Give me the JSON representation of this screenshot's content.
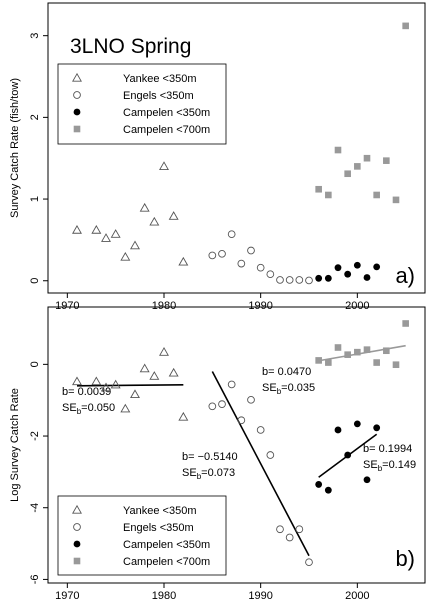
{
  "chart_data": [
    {
      "type": "scatter",
      "title": "3LNO Spring",
      "panel_label": "a)",
      "xlabel": "",
      "ylabel": "Survey Catch Rate (fish/tow)",
      "xlim": [
        1968,
        2007
      ],
      "ylim": [
        -0.15,
        3.4
      ],
      "x_ticks": [
        1970,
        1980,
        1990,
        2000
      ],
      "y_ticks": [
        0,
        1,
        2,
        3
      ],
      "legend_position": "top-left",
      "series": [
        {
          "name": "Yankee <350m",
          "marker": "triangle",
          "color": "#555555",
          "points": [
            [
              1971,
              0.62
            ],
            [
              1973,
              0.62
            ],
            [
              1974,
              0.52
            ],
            [
              1975,
              0.57
            ],
            [
              1976,
              0.29
            ],
            [
              1977,
              0.43
            ],
            [
              1978,
              0.89
            ],
            [
              1979,
              0.72
            ],
            [
              1980,
              1.4
            ],
            [
              1981,
              0.79
            ],
            [
              1982,
              0.23
            ]
          ]
        },
        {
          "name": "Engels <350m",
          "marker": "circle",
          "color": "#555555",
          "points": [
            [
              1985,
              0.31
            ],
            [
              1986,
              0.33
            ],
            [
              1987,
              0.57
            ],
            [
              1988,
              0.21
            ],
            [
              1989,
              0.37
            ],
            [
              1990,
              0.16
            ],
            [
              1991,
              0.08
            ],
            [
              1992,
              0.01
            ],
            [
              1993,
              0.01
            ],
            [
              1994,
              0.01
            ],
            [
              1995,
              0.004
            ]
          ]
        },
        {
          "name": "Campelen <350m",
          "marker": "filled-circle",
          "color": "#000000",
          "points": [
            [
              1996,
              0.03
            ],
            [
              1997,
              0.03
            ],
            [
              1998,
              0.16
            ],
            [
              1999,
              0.08
            ],
            [
              2000,
              0.19
            ],
            [
              2001,
              0.04
            ],
            [
              2002,
              0.17
            ]
          ]
        },
        {
          "name": "Campelen <700m",
          "marker": "filled-square",
          "color": "#999999",
          "points": [
            [
              1996,
              1.12
            ],
            [
              1997,
              1.05
            ],
            [
              1998,
              1.6
            ],
            [
              1999,
              1.31
            ],
            [
              2000,
              1.4
            ],
            [
              2001,
              1.5
            ],
            [
              2002,
              1.05
            ],
            [
              2003,
              1.47
            ],
            [
              2004,
              0.99
            ],
            [
              2005,
              3.12
            ]
          ]
        }
      ]
    },
    {
      "type": "scatter",
      "title": "",
      "panel_label": "b)",
      "xlabel": "",
      "ylabel": "Log Survey Catch Rate",
      "xlim": [
        1968,
        2007
      ],
      "ylim": [
        -6.1,
        1.6
      ],
      "x_ticks": [
        1970,
        1980,
        1990,
        2000
      ],
      "y_ticks": [
        -6,
        -4,
        -2,
        0
      ],
      "legend_position": "bottom-left",
      "series": [
        {
          "name": "Yankee <350m",
          "marker": "triangle",
          "color": "#555555",
          "points": [
            [
              1971,
              -0.48
            ],
            [
              1973,
              -0.48
            ],
            [
              1974,
              -0.65
            ],
            [
              1975,
              -0.57
            ],
            [
              1976,
              -1.24
            ],
            [
              1977,
              -0.84
            ],
            [
              1978,
              -0.12
            ],
            [
              1979,
              -0.33
            ],
            [
              1980,
              0.34
            ],
            [
              1981,
              -0.24
            ],
            [
              1982,
              -1.47
            ]
          ]
        },
        {
          "name": "Engels <350m",
          "marker": "circle",
          "color": "#555555",
          "points": [
            [
              1985,
              -1.17
            ],
            [
              1986,
              -1.11
            ],
            [
              1987,
              -0.56
            ],
            [
              1988,
              -1.56
            ],
            [
              1989,
              -0.99
            ],
            [
              1990,
              -1.83
            ],
            [
              1991,
              -2.53
            ],
            [
              1992,
              -4.6
            ],
            [
              1993,
              -4.83
            ],
            [
              1994,
              -4.6
            ],
            [
              1995,
              -5.52
            ]
          ]
        },
        {
          "name": "Campelen <350m",
          "marker": "filled-circle",
          "color": "#000000",
          "points": [
            [
              1996,
              -3.35
            ],
            [
              1997,
              -3.51
            ],
            [
              1998,
              -1.83
            ],
            [
              1999,
              -2.53
            ],
            [
              2000,
              -1.66
            ],
            [
              2001,
              -3.22
            ],
            [
              2002,
              -1.77
            ]
          ]
        },
        {
          "name": "Campelen <700m",
          "marker": "filled-square",
          "color": "#999999",
          "points": [
            [
              1996,
              0.11
            ],
            [
              1997,
              0.05
            ],
            [
              1998,
              0.47
            ],
            [
              1999,
              0.27
            ],
            [
              2000,
              0.34
            ],
            [
              2001,
              0.41
            ],
            [
              2002,
              0.05
            ],
            [
              2003,
              0.38
            ],
            [
              2004,
              -0.01
            ],
            [
              2005,
              1.14
            ]
          ]
        }
      ],
      "fits": [
        {
          "x": [
            1971,
            1982
          ],
          "y": [
            -0.6,
            -0.57
          ],
          "color": "#000000",
          "b_label": "b= 0.0039",
          "se_label": "SE",
          "se_sub": "b",
          "se_value": "=0.050"
        },
        {
          "x": [
            1985,
            1995
          ],
          "y": [
            -0.2,
            -5.34
          ],
          "color": "#000000",
          "b_label": "b= −0.5140",
          "se_label": "SE",
          "se_sub": "b",
          "se_value": "=0.073"
        },
        {
          "x": [
            1996,
            2005
          ],
          "y": [
            0.1,
            0.52
          ],
          "color": "#999999",
          "b_label": "b= 0.0470",
          "se_label": "SE",
          "se_sub": "b",
          "se_value": "=0.035"
        },
        {
          "x": [
            1996,
            2002
          ],
          "y": [
            -3.15,
            -1.95
          ],
          "color": "#000000",
          "b_label": "b= 0.1994",
          "se_label": "SE",
          "se_sub": "b",
          "se_value": "=0.149"
        }
      ]
    }
  ]
}
